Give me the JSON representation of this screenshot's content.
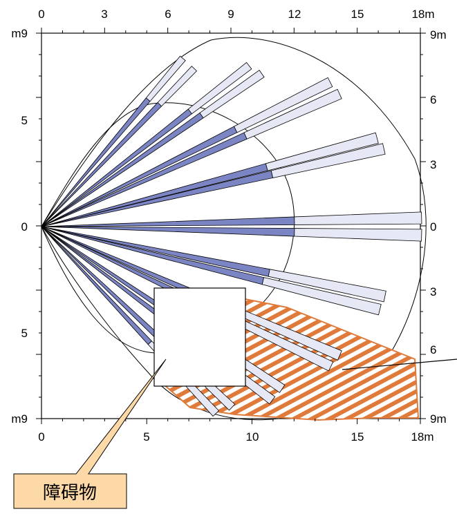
{
  "diagram": {
    "top_axis": {
      "ticks": [
        "0",
        "3",
        "6",
        "9",
        "12",
        "15",
        "18m"
      ]
    },
    "bottom_axis": {
      "ticks": [
        "0",
        "5",
        "10",
        "15",
        "18m"
      ]
    },
    "left_axis": {
      "ticks": [
        "m9",
        "5",
        "0",
        "5",
        "m9"
      ]
    },
    "right_axis": {
      "ticks": [
        "9m",
        "6",
        "3",
        "0",
        "3",
        "6",
        "9m"
      ]
    },
    "callout_label": "障碍物",
    "colors": {
      "beam_near": "#7c85c4",
      "beam_far": "#e6e8f6",
      "hatch": "#e07a3a",
      "callout_fill": "#fdd9a8",
      "obstacle_fill": "#ffffff"
    }
  }
}
